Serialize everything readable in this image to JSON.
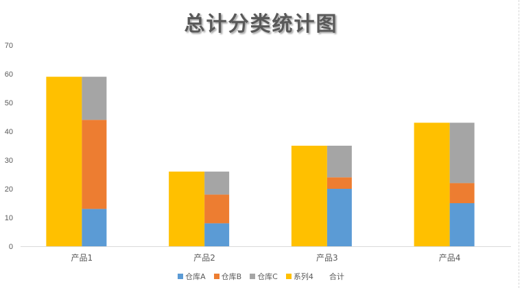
{
  "colors": {
    "仓库A": "#5b9bd5",
    "仓库B": "#ed7d31",
    "仓库C": "#a5a5a5",
    "系列4": "#ffc000",
    "合计": "none"
  },
  "chart_data": {
    "type": "bar",
    "title": "总计分类统计图",
    "categories": [
      "产品1",
      "产品2",
      "产品3",
      "产品4"
    ],
    "ylim": [
      0,
      70
    ],
    "yticks": [
      0,
      10,
      20,
      30,
      40,
      50,
      60,
      70
    ],
    "grid": false,
    "legend_position": "bottom",
    "series": [
      {
        "name": "仓库A",
        "stack": "right",
        "values": [
          13,
          8,
          20,
          15
        ]
      },
      {
        "name": "仓库B",
        "stack": "right",
        "values": [
          31,
          10,
          4,
          7
        ]
      },
      {
        "name": "仓库C",
        "stack": "right",
        "values": [
          15,
          8,
          11,
          21
        ]
      },
      {
        "name": "系列4",
        "stack": "left",
        "values": [
          59,
          26,
          35,
          43
        ]
      },
      {
        "name": "合计",
        "stack": "none",
        "values": [
          59,
          26,
          35,
          43
        ]
      }
    ]
  }
}
